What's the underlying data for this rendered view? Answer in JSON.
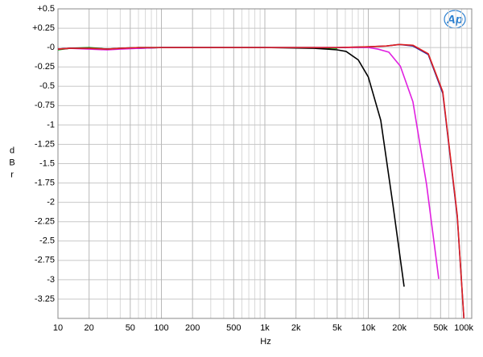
{
  "chart_data": {
    "type": "line",
    "logo": "Ap",
    "xlabel": "Hz",
    "ylabel": "dBr",
    "xscale": "log",
    "grid": true,
    "xlim": [
      10,
      100000
    ],
    "ylim": [
      -3.5,
      0.5
    ],
    "xticks": [
      10,
      20,
      50,
      100,
      200,
      500,
      {
        "value": 1000,
        "label": "1k"
      },
      {
        "value": 2000,
        "label": "2k"
      },
      {
        "value": 5000,
        "label": "5k"
      },
      {
        "value": 10000,
        "label": "10k"
      },
      {
        "value": 20000,
        "label": "20k"
      },
      {
        "value": 50000,
        "label": "50k"
      },
      {
        "value": 100000,
        "label": "100k"
      }
    ],
    "yticks": [
      {
        "value": 0.5,
        "label": "+0.5"
      },
      {
        "value": 0.25,
        "label": "+0.25"
      },
      {
        "value": 0,
        "label": "-0"
      },
      -0.25,
      -0.5,
      -0.75,
      -1,
      -1.25,
      -1.5,
      -1.75,
      -2,
      -2.25,
      -2.5,
      -2.75,
      -3,
      -3.25
    ],
    "series": [
      {
        "color": "#00a000",
        "x": [
          10,
          13,
          20,
          30,
          40,
          60,
          100,
          1000,
          3000,
          5000
        ],
        "values": [
          -0.03,
          -0.01,
          0,
          -0.02,
          -0.01,
          0,
          0,
          0,
          0,
          -0.01
        ]
      },
      {
        "color": "#000000",
        "x": [
          10,
          13,
          20,
          30,
          35,
          45,
          60,
          100,
          1000,
          3000,
          4000,
          5000,
          6100,
          8000,
          10000,
          13200,
          17300,
          22200
        ],
        "values": [
          -0.02,
          -0.01,
          -0.01,
          -0.02,
          -0.02,
          -0.01,
          -0.01,
          0,
          0,
          -0.01,
          -0.02,
          -0.03,
          -0.05,
          -0.16,
          -0.38,
          -0.94,
          -2.03,
          -3.09
        ]
      },
      {
        "color": "#e020e0",
        "x": [
          10,
          13,
          20,
          30,
          40,
          60,
          100,
          1000,
          5000,
          10000,
          12400,
          15800,
          20400,
          27000,
          36600,
          48000
        ],
        "values": [
          -0.02,
          -0.01,
          -0.02,
          -0.03,
          -0.02,
          -0.01,
          0,
          0,
          0,
          0,
          -0.02,
          -0.06,
          -0.24,
          -0.7,
          -1.77,
          -2.99
        ]
      },
      {
        "color": "#2020a0",
        "x": [
          10,
          13,
          20,
          30,
          40,
          60,
          100,
          1000,
          5000,
          10000,
          15000,
          20000,
          27000,
          38000,
          52500,
          72500,
          84000
        ],
        "values": [
          -0.02,
          -0.01,
          -0.01,
          -0.02,
          -0.01,
          0,
          0,
          0,
          0,
          0.01,
          0.02,
          0.04,
          0.02,
          -0.09,
          -0.59,
          -2.19,
          -3.5
        ]
      },
      {
        "color": "#e02020",
        "x": [
          10,
          13,
          20,
          30,
          40,
          60,
          100,
          1000,
          5000,
          10000,
          15000,
          20000,
          27000,
          38000,
          52500,
          72500,
          84000
        ],
        "values": [
          -0.02,
          -0.01,
          -0.01,
          -0.02,
          -0.01,
          0,
          0,
          0,
          0,
          0.01,
          0.02,
          0.04,
          0.03,
          -0.08,
          -0.57,
          -2.17,
          -3.5
        ]
      }
    ]
  }
}
